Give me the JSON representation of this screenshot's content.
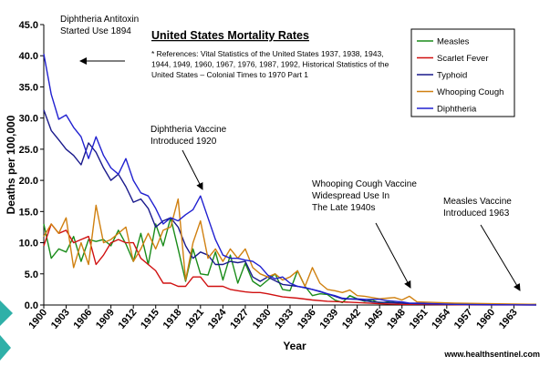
{
  "chart_data": {
    "type": "line",
    "title": "United States Mortality Rates",
    "references": [
      "* References: Vital Statistics of the United States 1937, 1938, 1943,",
      "1944, 1949, 1960, 1967, 1976, 1987, 1992, Historical Statistics of the",
      "United States – Colonial Times to 1970 Part 1"
    ],
    "xlabel": "Year",
    "ylabel": "Deaths per 100,000",
    "xlim": [
      1900,
      1966
    ],
    "ylim": [
      0,
      45
    ],
    "yticks": [
      "0.0",
      "5.0",
      "10.0",
      "15.0",
      "20.0",
      "25.0",
      "30.0",
      "35.0",
      "40.0",
      "45.0"
    ],
    "xticks": [
      "1900",
      "1903",
      "1906",
      "1909",
      "1912",
      "1915",
      "1918",
      "1921",
      "1924",
      "1927",
      "1930",
      "1933",
      "1936",
      "1939",
      "1942",
      "1945",
      "1948",
      "1951",
      "1954",
      "1957",
      "1960",
      "1963"
    ],
    "legend_position": "top-right",
    "series": [
      {
        "name": "Measles",
        "color": "#1a8c1a",
        "x": [
          1900,
          1901,
          1902,
          1903,
          1904,
          1905,
          1906,
          1907,
          1908,
          1909,
          1910,
          1911,
          1912,
          1913,
          1914,
          1915,
          1916,
          1917,
          1918,
          1919,
          1920,
          1921,
          1922,
          1923,
          1924,
          1925,
          1926,
          1927,
          1928,
          1929,
          1930,
          1931,
          1932,
          1933,
          1934,
          1935,
          1936,
          1937,
          1938,
          1939,
          1940,
          1941,
          1942,
          1943,
          1944,
          1945,
          1946,
          1947,
          1948,
          1949,
          1950,
          1955,
          1960,
          1963,
          1966
        ],
        "y": [
          13,
          7.5,
          9,
          8.5,
          11,
          7,
          10.5,
          10.2,
          10.5,
          9.5,
          12,
          9.8,
          7,
          11.5,
          6.5,
          13,
          9.5,
          14,
          9,
          3.8,
          9,
          5,
          4.8,
          8.5,
          4,
          8,
          3.5,
          6.7,
          3.8,
          3,
          4,
          5,
          2.5,
          2.3,
          5.5,
          3,
          1.5,
          1.8,
          1.7,
          0.8,
          0.4,
          1.5,
          1,
          0.6,
          0.8,
          0.3,
          0.5,
          0.4,
          0.3,
          0.2,
          0.2,
          0.1,
          0.1,
          0.1,
          0.1
        ]
      },
      {
        "name": "Scarlet Fever",
        "color": "#d01010",
        "x": [
          1900,
          1901,
          1902,
          1903,
          1904,
          1905,
          1906,
          1907,
          1908,
          1909,
          1910,
          1911,
          1912,
          1913,
          1914,
          1915,
          1916,
          1917,
          1918,
          1919,
          1920,
          1921,
          1922,
          1923,
          1924,
          1925,
          1926,
          1927,
          1928,
          1929,
          1930,
          1932,
          1934,
          1936,
          1938,
          1940,
          1942,
          1945,
          1948,
          1950,
          1955,
          1960,
          1966
        ],
        "y": [
          9.5,
          13,
          11.5,
          12,
          10,
          10.5,
          11,
          6.5,
          8,
          10,
          10.5,
          10,
          10,
          7.5,
          6.5,
          5.5,
          3.5,
          3.5,
          3,
          3,
          4.5,
          4.5,
          3,
          3,
          3,
          2.5,
          2.3,
          2.1,
          2,
          2,
          1.8,
          1.3,
          1.1,
          0.8,
          0.6,
          0.5,
          0.4,
          0.2,
          0.1,
          0.1,
          0.05,
          0.02,
          0.01
        ]
      },
      {
        "name": "Typhoid",
        "color": "#1a1a8c",
        "x": [
          1900,
          1901,
          1902,
          1903,
          1904,
          1905,
          1906,
          1907,
          1908,
          1909,
          1910,
          1911,
          1912,
          1913,
          1914,
          1915,
          1916,
          1917,
          1918,
          1919,
          1920,
          1921,
          1922,
          1923,
          1924,
          1925,
          1926,
          1927,
          1928,
          1929,
          1930,
          1932,
          1934,
          1936,
          1938,
          1940,
          1942,
          1944,
          1946,
          1948,
          1950,
          1955,
          1960,
          1966
        ],
        "y": [
          31.3,
          28,
          26.5,
          25,
          24,
          22.5,
          26,
          24.5,
          22,
          20,
          21,
          19,
          16.5,
          17,
          15.5,
          12.5,
          13.5,
          14,
          12.5,
          9.5,
          7.5,
          8.5,
          8,
          6.5,
          6.5,
          7,
          6.8,
          7,
          4.5,
          3.8,
          4.5,
          3.3,
          3,
          2.5,
          1.8,
          1,
          0.9,
          0.5,
          0.4,
          0.3,
          0.2,
          0.1,
          0.05,
          0.02
        ]
      },
      {
        "name": "Whooping Cough",
        "color": "#d08010",
        "x": [
          1900,
          1901,
          1902,
          1903,
          1904,
          1905,
          1906,
          1907,
          1908,
          1909,
          1910,
          1911,
          1912,
          1913,
          1914,
          1915,
          1916,
          1917,
          1918,
          1919,
          1920,
          1921,
          1922,
          1923,
          1924,
          1925,
          1926,
          1927,
          1928,
          1929,
          1930,
          1931,
          1932,
          1933,
          1934,
          1935,
          1936,
          1937,
          1938,
          1939,
          1940,
          1941,
          1942,
          1943,
          1944,
          1945,
          1946,
          1947,
          1948,
          1949,
          1950,
          1955,
          1960,
          1966
        ],
        "y": [
          11,
          13,
          11.5,
          14,
          6,
          10,
          6.5,
          16,
          10,
          10.5,
          11.5,
          12.5,
          7,
          9,
          11.5,
          9,
          12,
          12.5,
          17,
          4,
          10,
          13.5,
          7.5,
          9,
          7,
          9,
          7.5,
          9,
          6,
          5,
          4.5,
          5,
          4,
          4.5,
          5.5,
          3,
          6,
          3.5,
          2.5,
          2.3,
          2,
          2.4,
          1.5,
          1.4,
          1.2,
          1,
          1.1,
          1.2,
          0.8,
          1.4,
          0.5,
          0.3,
          0.2,
          0.1
        ]
      },
      {
        "name": "Diphtheria",
        "color": "#2020d0",
        "x": [
          1900,
          1901,
          1902,
          1903,
          1904,
          1905,
          1906,
          1907,
          1908,
          1909,
          1910,
          1911,
          1912,
          1913,
          1914,
          1915,
          1916,
          1917,
          1918,
          1919,
          1920,
          1921,
          1922,
          1923,
          1924,
          1925,
          1926,
          1927,
          1928,
          1929,
          1930,
          1931,
          1932,
          1933,
          1934,
          1935,
          1936,
          1937,
          1938,
          1939,
          1940,
          1941,
          1942,
          1943,
          1944,
          1945,
          1946,
          1947,
          1948,
          1949,
          1950,
          1955,
          1960,
          1966
        ],
        "y": [
          40.3,
          33.8,
          29.8,
          30.5,
          28.5,
          27,
          23.5,
          27,
          24,
          22,
          21,
          23.5,
          20,
          18,
          17.5,
          15.5,
          13,
          14,
          13.5,
          14.5,
          15.3,
          17.5,
          14,
          10.5,
          8,
          7.5,
          7.5,
          7.2,
          7,
          6.2,
          4.8,
          4.2,
          4.5,
          3.5,
          3,
          2.8,
          2.5,
          2.2,
          1.8,
          1.5,
          1.1,
          1,
          1,
          0.9,
          0.9,
          0.9,
          0.7,
          0.6,
          0.5,
          0.3,
          0.3,
          0.1,
          0.05,
          0.01
        ]
      }
    ],
    "annotations": [
      {
        "id": "antitoxin",
        "lines": [
          "Diphtheria Antitoxin",
          "Started Use 1894"
        ]
      },
      {
        "id": "dip-vaccine",
        "lines": [
          "Diphtheria Vaccine",
          "Introduced 1920"
        ]
      },
      {
        "id": "whoop-vaccine",
        "lines": [
          "Whooping Cough Vaccine",
          "Widespread Use In",
          "The Late 1940s"
        ]
      },
      {
        "id": "measles-vaccine",
        "lines": [
          "Measles Vaccine",
          "Introduced 1963"
        ]
      }
    ],
    "source": "www.healthsentinel.com"
  }
}
